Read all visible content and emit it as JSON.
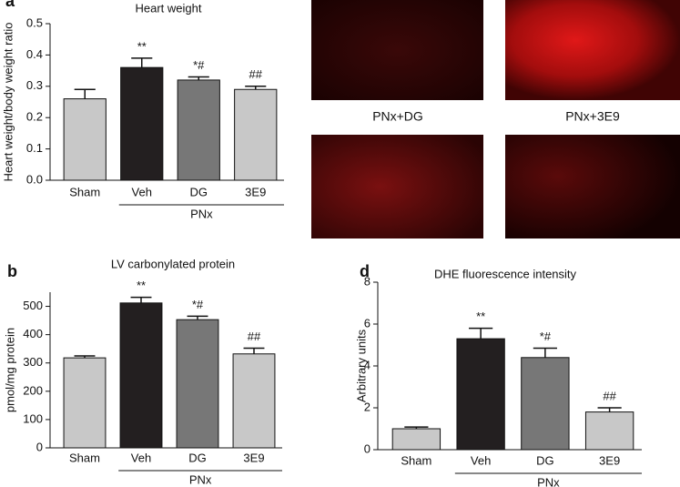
{
  "chart_data": [
    {
      "type": "bar",
      "panel": "a",
      "title": "Heart weight",
      "ylabel": "Heart weight/body weight ratio",
      "categories": [
        "Sham",
        "Veh",
        "DG",
        "3E9"
      ],
      "values": [
        0.26,
        0.36,
        0.32,
        0.29
      ],
      "errors": [
        0.03,
        0.03,
        0.01,
        0.01
      ],
      "annotations": [
        null,
        "**",
        "*#",
        "##"
      ],
      "colors": [
        "#c8c8c8",
        "#231f20",
        "#777777",
        "#c8c8c8"
      ],
      "group_label": "PNx",
      "ylim": [
        0,
        0.5
      ],
      "yticks": [
        {
          "value": 0,
          "label": "0.0"
        },
        0.1,
        0.2,
        0.3,
        0.4,
        0.5
      ]
    },
    {
      "type": "bar",
      "panel": "b",
      "title": "LV carbonylated protein",
      "ylabel": "pmol/mg protein",
      "categories": [
        "Sham",
        "Veh",
        "DG",
        "3E9"
      ],
      "values": [
        318,
        512,
        453,
        332
      ],
      "errors": [
        7,
        20,
        12,
        20
      ],
      "annotations": [
        null,
        "**",
        "*#",
        "##"
      ],
      "colors": [
        "#c8c8c8",
        "#231f20",
        "#777777",
        "#c8c8c8"
      ],
      "group_label": "PNx",
      "ylim": [
        0,
        550
      ],
      "yticks": [
        0,
        100,
        200,
        300,
        400,
        500
      ]
    },
    {
      "type": "bar",
      "panel": "d",
      "title": "DHE fluorescence intensity",
      "ylabel": "Arbitrary units",
      "categories": [
        "Sham",
        "Veh",
        "DG",
        "3E9"
      ],
      "values": [
        1.0,
        5.3,
        4.4,
        1.8
      ],
      "errors": [
        0.08,
        0.5,
        0.45,
        0.2
      ],
      "annotations": [
        null,
        "**",
        "*#",
        "##"
      ],
      "colors": [
        "#c8c8c8",
        "#231f20",
        "#777777",
        "#c8c8c8"
      ],
      "group_label": "PNx",
      "ylim": [
        0,
        8
      ],
      "yticks": [
        0,
        2,
        4,
        6,
        8
      ]
    }
  ],
  "images": {
    "labels": [
      "PNx+DG",
      "PNx+3E9"
    ]
  }
}
